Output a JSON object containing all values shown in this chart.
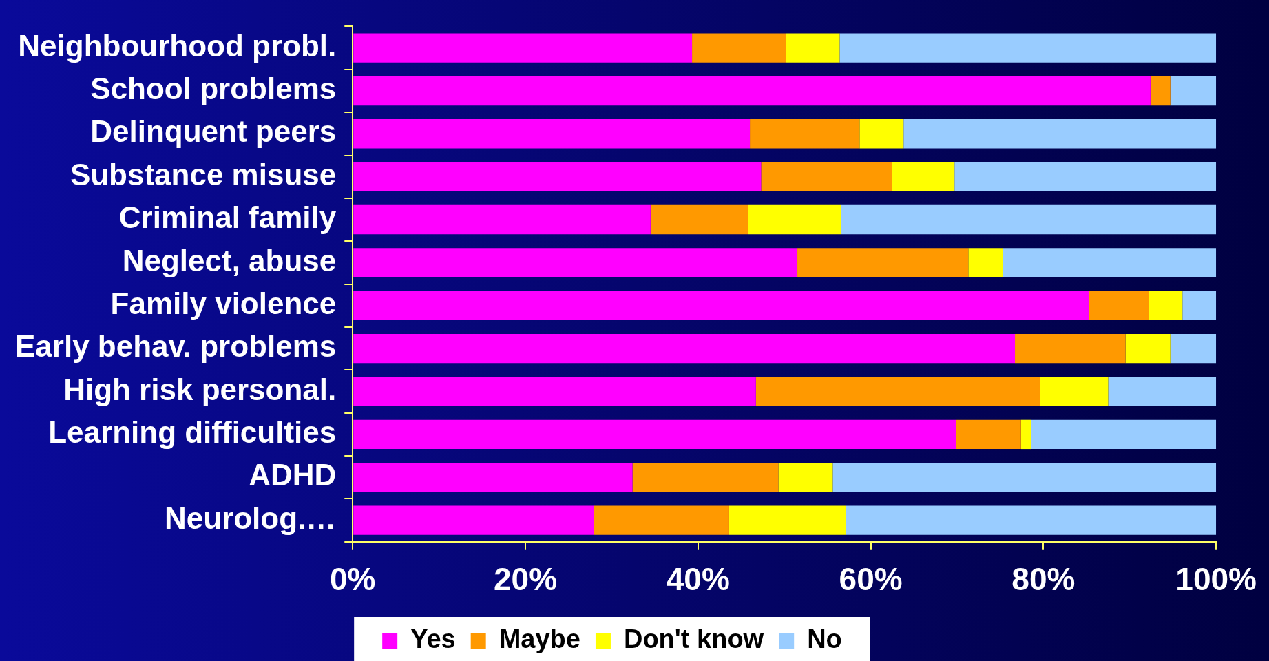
{
  "chart_data": {
    "type": "bar",
    "orientation": "horizontal",
    "stacked": true,
    "categories": [
      "Neighbourhood probl.",
      "School problems",
      "Delinquent peers",
      "Substance misuse",
      "Criminal family",
      "Neglect, abuse",
      "Family violence",
      "Early behav. problems",
      "High risk personal.",
      "Learning difficulties",
      "ADHD",
      "Neurolog.…"
    ],
    "series": [
      {
        "name": "Yes",
        "color": "#ff00ff",
        "values": [
          39.3,
          92.4,
          46.0,
          47.3,
          34.5,
          51.5,
          85.3,
          76.7,
          46.7,
          69.9,
          32.4,
          27.9
        ]
      },
      {
        "name": "Maybe",
        "color": "#ff9900",
        "values": [
          10.9,
          2.3,
          12.7,
          15.2,
          11.3,
          19.8,
          6.9,
          12.8,
          32.9,
          7.5,
          16.9,
          15.7
        ]
      },
      {
        "name": "Don't know",
        "color": "#ffff00",
        "values": [
          6.2,
          0,
          5.1,
          7.2,
          10.8,
          4.0,
          3.9,
          5.2,
          7.9,
          1.2,
          6.3,
          13.5
        ]
      },
      {
        "name": "No",
        "color": "#99ccff",
        "values": [
          43.6,
          5.3,
          36.2,
          30.3,
          43.4,
          24.7,
          3.9,
          5.3,
          12.5,
          21.4,
          44.4,
          42.9
        ]
      }
    ],
    "xlim": [
      0,
      100
    ],
    "xticks": [
      {
        "value": 0,
        "label": "0%"
      },
      {
        "value": 20,
        "label": "20%"
      },
      {
        "value": 40,
        "label": "40%"
      },
      {
        "value": 60,
        "label": "60%"
      },
      {
        "value": 80,
        "label": "80%"
      },
      {
        "value": 100,
        "label": "100%"
      }
    ],
    "grid": false,
    "legend": "bottom"
  }
}
